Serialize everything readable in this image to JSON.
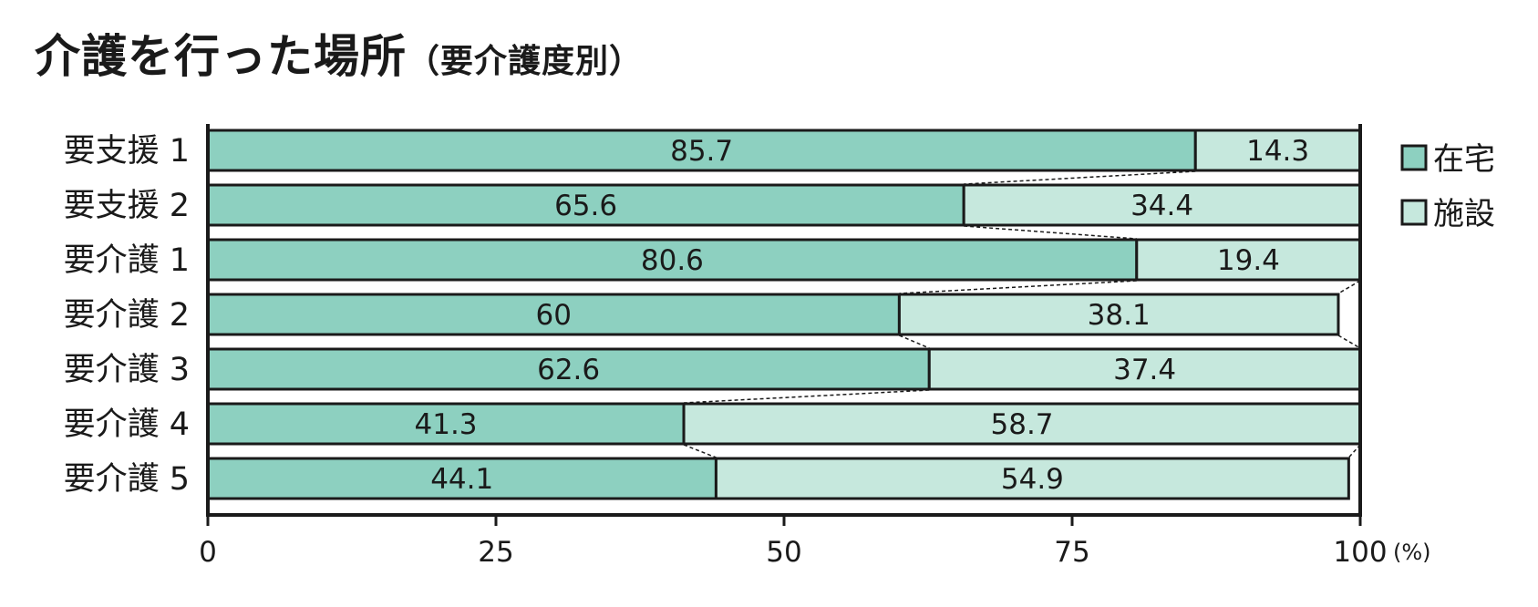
{
  "title": "介護を行った場所",
  "subtitle": "（要介護度別）",
  "chart_data": {
    "type": "bar",
    "orientation": "horizontal",
    "stacked": true,
    "categories": [
      "要支援 1",
      "要支援 2",
      "要介護 1",
      "要介護 2",
      "要介護 3",
      "要介護 4",
      "要介護 5"
    ],
    "series": [
      {
        "name": "在宅",
        "color": "#8dd0c0",
        "values": [
          85.7,
          65.6,
          80.6,
          60,
          62.6,
          41.3,
          44.1
        ]
      },
      {
        "name": "施設",
        "color": "#c6e8dd",
        "values": [
          14.3,
          34.4,
          19.4,
          38.1,
          37.4,
          58.7,
          54.9
        ]
      }
    ],
    "xlim": [
      0,
      100
    ],
    "xticks": [
      "0",
      "25",
      "50",
      "75",
      "100"
    ],
    "xunit": "(%)",
    "legend_position": "right",
    "connector_lines": true
  }
}
